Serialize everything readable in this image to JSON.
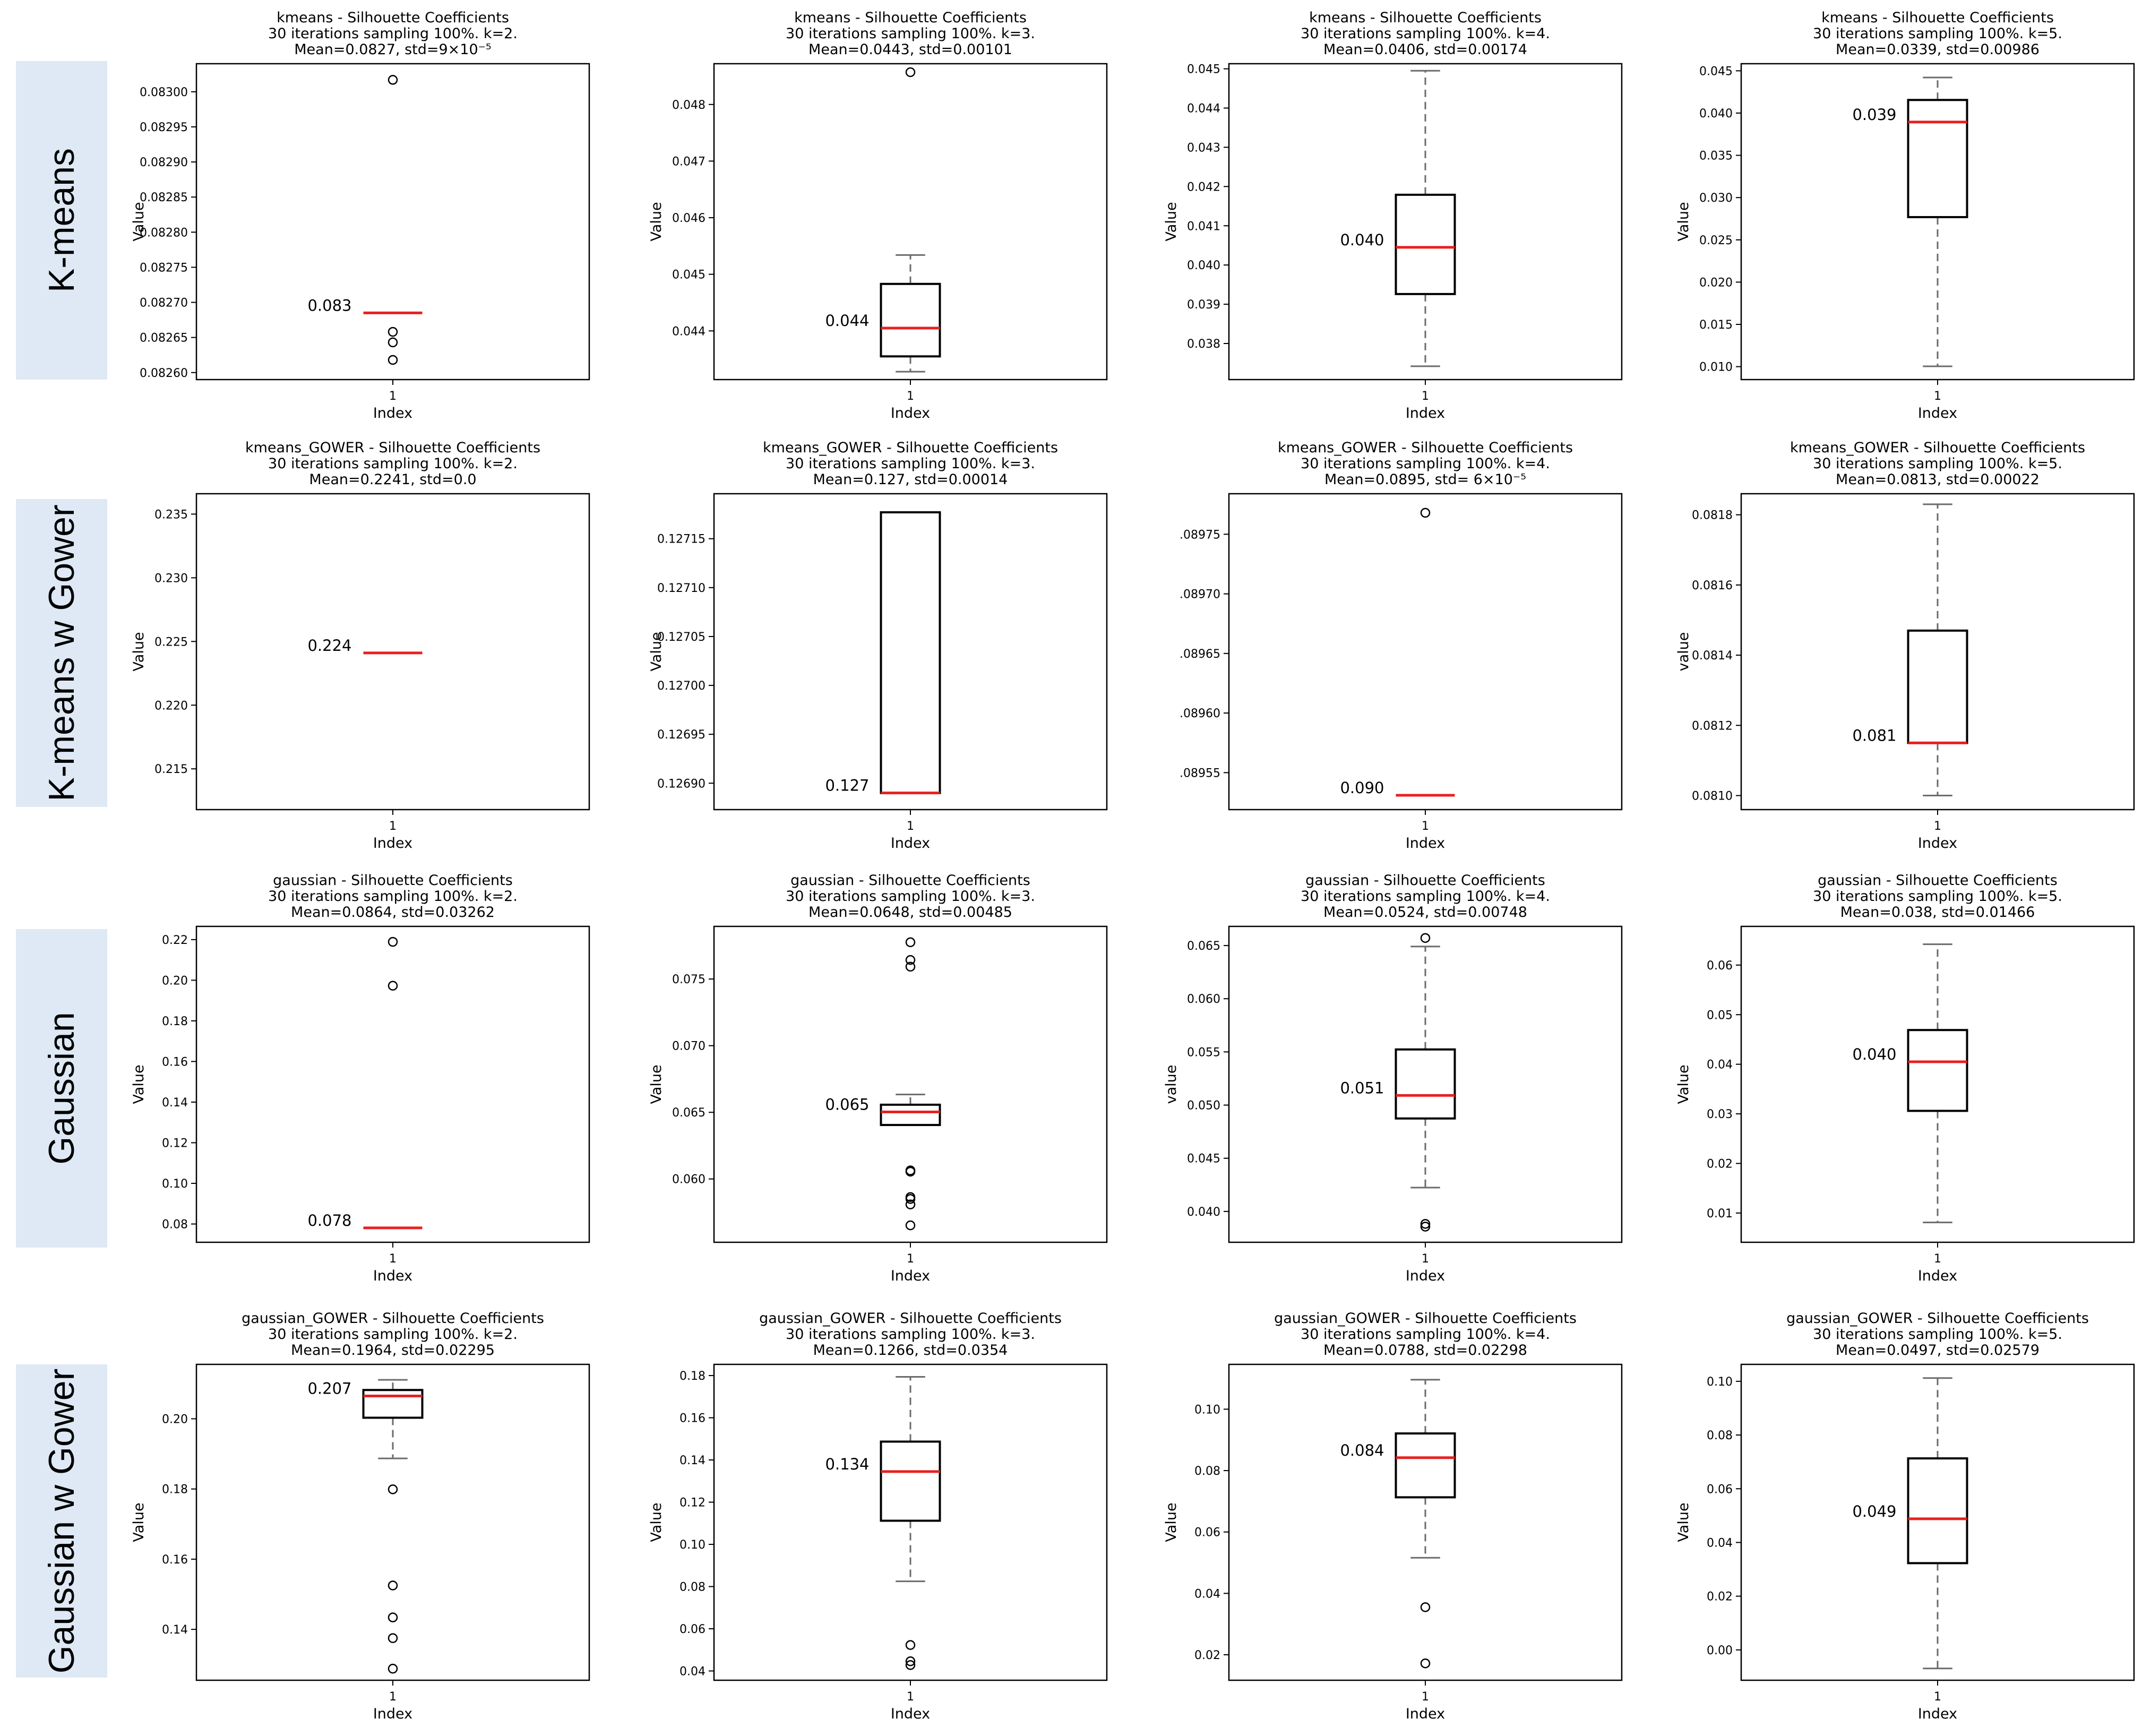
{
  "row_labels": [
    "K-means",
    "K-means w Gower",
    "Gaussian",
    "Gaussian w Gower"
  ],
  "chart_data": [
    {
      "type": "box",
      "title": [
        "kmeans - Silhouette Coefficients",
        "30 iterations sampling 100%. k=2.",
        "Mean=0.0827, std=9×10⁻⁵"
      ],
      "xlabel": "Index",
      "ylabel": "Value",
      "categories": [
        "1"
      ],
      "ylim": [
        0.08259,
        0.08304
      ],
      "yticks": [
        0.0826,
        0.08265,
        0.0827,
        0.08275,
        0.0828,
        0.08285,
        0.0829,
        0.08295,
        0.083
      ],
      "ytick_labels": [
        "0.08260",
        "0.08265",
        "0.08270",
        "0.08275",
        "0.08280",
        "0.08285",
        "0.08290",
        "0.08295",
        "0.08300"
      ],
      "box": {
        "q1": 0.082685,
        "median": 0.082685,
        "q3": 0.082685,
        "whislo": 0.082685,
        "whishi": 0.082685
      },
      "fliers": [
        0.083017,
        0.082658,
        0.082643,
        0.082618
      ],
      "median_label": "0.083",
      "colors": {
        "box": "#000000",
        "median": "#e8201f",
        "whisker": "#6b6b6b"
      }
    },
    {
      "type": "box",
      "title": [
        "kmeans - Silhouette Coefficients",
        "30 iterations sampling 100%. k=3.",
        "Mean=0.0443, std=0.00101"
      ],
      "xlabel": "Index",
      "ylabel": "Value",
      "categories": [
        "1"
      ],
      "ylim": [
        0.04314,
        0.04872
      ],
      "yticks": [
        0.044,
        0.045,
        0.046,
        0.047,
        0.048
      ],
      "ytick_labels": [
        "0.044",
        "0.045",
        "0.046",
        "0.047",
        "0.048"
      ],
      "box": {
        "q1": 0.04355,
        "median": 0.04405,
        "q3": 0.04483,
        "whislo": 0.04328,
        "whishi": 0.04534
      },
      "fliers": [
        0.04857
      ],
      "median_label": "0.044",
      "colors": {
        "box": "#000000",
        "median": "#e8201f",
        "whisker": "#6b6b6b"
      }
    },
    {
      "type": "box",
      "title": [
        "kmeans - Silhouette Coefficients",
        "30 iterations sampling 100%. k=4.",
        "Mean=0.0406, std=0.00174"
      ],
      "xlabel": "Index",
      "ylabel": "Value",
      "categories": [
        "1"
      ],
      "ylim": [
        0.03708,
        0.04513
      ],
      "yticks": [
        0.038,
        0.039,
        0.04,
        0.041,
        0.042,
        0.043,
        0.044,
        0.045
      ],
      "ytick_labels": [
        "0.038",
        "0.039",
        "0.040",
        "0.041",
        "0.042",
        "0.043",
        "0.044",
        "0.045"
      ],
      "box": {
        "q1": 0.03926,
        "median": 0.04045,
        "q3": 0.04179,
        "whislo": 0.03742,
        "whishi": 0.04495
      },
      "fliers": [],
      "median_label": "0.040",
      "colors": {
        "box": "#000000",
        "median": "#e8201f",
        "whisker": "#6b6b6b"
      }
    },
    {
      "type": "box",
      "title": [
        "kmeans - Silhouette Coefficients",
        "30 iterations sampling 100%. k=5.",
        "Mean=0.0339, std=0.00986"
      ],
      "xlabel": "Index",
      "ylabel": "Value",
      "categories": [
        "1"
      ],
      "ylim": [
        0.00847,
        0.04584
      ],
      "yticks": [
        0.01,
        0.015,
        0.02,
        0.025,
        0.03,
        0.035,
        0.04,
        0.045
      ],
      "ytick_labels": [
        "0.010",
        "0.015",
        "0.020",
        "0.025",
        "0.030",
        "0.035",
        "0.040",
        "0.045"
      ],
      "box": {
        "q1": 0.02769,
        "median": 0.03894,
        "q3": 0.04155,
        "whislo": 0.01004,
        "whishi": 0.04421
      },
      "fliers": [],
      "median_label": "0.039",
      "colors": {
        "box": "#000000",
        "median": "#e8201f",
        "whisker": "#6b6b6b"
      }
    },
    {
      "type": "box",
      "title": [
        "kmeans_GOWER - Silhouette Coefficients",
        "30 iterations sampling 100%. k=2.",
        "Mean=0.2241, std=0.0"
      ],
      "xlabel": "Index",
      "ylabel": "Value",
      "categories": [
        "1"
      ],
      "ylim": [
        0.2118,
        0.2366
      ],
      "yticks": [
        0.215,
        0.22,
        0.225,
        0.23,
        0.235
      ],
      "ytick_labels": [
        "0.215",
        "0.220",
        "0.225",
        "0.230",
        "0.235"
      ],
      "box": {
        "q1": 0.2241,
        "median": 0.2241,
        "q3": 0.2241,
        "whislo": 0.2241,
        "whishi": 0.2241
      },
      "fliers": [],
      "median_label": "0.224",
      "colors": {
        "box": "#000000",
        "median": "#e8201f",
        "whisker": "#6b6b6b"
      }
    },
    {
      "type": "box",
      "title": [
        "kmeans_GOWER - Silhouette Coefficients",
        "30 iterations sampling 100%. k=3.",
        "Mean=0.127, std=0.00014"
      ],
      "xlabel": "Index",
      "ylabel": "Value",
      "categories": [
        "1"
      ],
      "ylim": [
        0.126873,
        0.127196
      ],
      "yticks": [
        0.1269,
        0.12695,
        0.127,
        0.12705,
        0.1271,
        0.12715
      ],
      "ytick_labels": [
        "0.12690",
        "0.12695",
        "0.12700",
        "0.12705",
        "0.12710",
        "0.12715"
      ],
      "box": {
        "q1": 0.12689,
        "median": 0.12689,
        "q3": 0.127177,
        "whislo": 0.12689,
        "whishi": 0.127177
      },
      "fliers": [],
      "median_label": "0.127",
      "colors": {
        "box": "#000000",
        "median": "#e8201f",
        "whisker": "#6b6b6b"
      }
    },
    {
      "type": "box",
      "title": [
        "kmeans_GOWER - Silhouette Coefficients",
        "30 iterations sampling 100%. k=4.",
        "Mean=0.0895, std= 6×10⁻⁵"
      ],
      "xlabel": "Index",
      "ylabel": "",
      "categories": [
        "1"
      ],
      "ylim": [
        0.089519,
        0.089784
      ],
      "yticks": [
        0.08955,
        0.0896,
        0.08965,
        0.0897,
        0.08975
      ],
      "ytick_labels": [
        ".08955",
        ".08960",
        ".08965",
        ".08970",
        ".08975"
      ],
      "box": {
        "q1": 0.089531,
        "median": 0.089531,
        "q3": 0.089531,
        "whislo": 0.089531,
        "whishi": 0.089531
      },
      "fliers": [
        0.089768
      ],
      "median_label": "0.090",
      "colors": {
        "box": "#000000",
        "median": "#e8201f",
        "whisker": "#6b6b6b"
      }
    },
    {
      "type": "box",
      "title": [
        "kmeans_GOWER - Silhouette Coefficients",
        "30 iterations sampling 100%. k=5.",
        "Mean=0.0813, std=0.00022"
      ],
      "xlabel": "Index",
      "ylabel": "value",
      "categories": [
        "1"
      ],
      "ylim": [
        0.08096,
        0.08186
      ],
      "yticks": [
        0.081,
        0.0812,
        0.0814,
        0.0816,
        0.0818
      ],
      "ytick_labels": [
        "0.0810",
        "0.0812",
        "0.0814",
        "0.0816",
        "0.0818"
      ],
      "box": {
        "q1": 0.08115,
        "median": 0.08115,
        "q3": 0.08147,
        "whislo": 0.081,
        "whishi": 0.08183
      },
      "fliers": [],
      "median_label": "0.081",
      "colors": {
        "box": "#000000",
        "median": "#e8201f",
        "whisker": "#6b6b6b"
      }
    },
    {
      "type": "box",
      "title": [
        "gaussian - Silhouette Coefficients",
        "30 iterations sampling 100%. k=2.",
        "Mean=0.0864, std=0.03262"
      ],
      "xlabel": "Index",
      "ylabel": "Value",
      "categories": [
        "1"
      ],
      "ylim": [
        0.071,
        0.2265
      ],
      "yticks": [
        0.08,
        0.1,
        0.12,
        0.14,
        0.16,
        0.18,
        0.2,
        0.22
      ],
      "ytick_labels": [
        "0.08",
        "0.10",
        "0.12",
        "0.14",
        "0.16",
        "0.18",
        "0.20",
        "0.22"
      ],
      "box": {
        "q1": 0.0781,
        "median": 0.0781,
        "q3": 0.0781,
        "whislo": 0.0781,
        "whishi": 0.0781
      },
      "fliers": [
        0.2189,
        0.1973
      ],
      "median_label": "0.078",
      "colors": {
        "box": "#000000",
        "median": "#e8201f",
        "whisker": "#6b6b6b"
      }
    },
    {
      "type": "box",
      "title": [
        "gaussian - Silhouette Coefficients",
        "30 iterations sampling 100%. k=3.",
        "Mean=0.0648, std=0.00485"
      ],
      "xlabel": "Index",
      "ylabel": "Value",
      "categories": [
        "1"
      ],
      "ylim": [
        0.05525,
        0.07895
      ],
      "yticks": [
        0.06,
        0.065,
        0.07,
        0.075
      ],
      "ytick_labels": [
        "0.060",
        "0.065",
        "0.070",
        "0.075"
      ],
      "box": {
        "q1": 0.06405,
        "median": 0.06503,
        "q3": 0.06557,
        "whislo": 0.06405,
        "whishi": 0.06634
      },
      "fliers": [
        0.07776,
        0.07643,
        0.07593,
        0.06064,
        0.06055,
        0.05864,
        0.0585,
        0.05809,
        0.05652
      ],
      "median_label": "0.065",
      "colors": {
        "box": "#000000",
        "median": "#e8201f",
        "whisker": "#6b6b6b"
      }
    },
    {
      "type": "box",
      "title": [
        "gaussian - Silhouette Coefficients",
        "30 iterations sampling 100%. k=4.",
        "Mean=0.0524, std=0.00748"
      ],
      "xlabel": "Index",
      "ylabel": "value",
      "categories": [
        "1"
      ],
      "ylim": [
        0.0371,
        0.0668
      ],
      "yticks": [
        0.04,
        0.045,
        0.05,
        0.055,
        0.06,
        0.065
      ],
      "ytick_labels": [
        "0.040",
        "0.045",
        "0.050",
        "0.055",
        "0.060",
        "0.065"
      ],
      "box": {
        "q1": 0.04874,
        "median": 0.05091,
        "q3": 0.05523,
        "whislo": 0.04224,
        "whishi": 0.06491
      },
      "fliers": [
        0.06571,
        0.03883,
        0.03857
      ],
      "median_label": "0.051",
      "colors": {
        "box": "#000000",
        "median": "#e8201f",
        "whisker": "#6b6b6b"
      }
    },
    {
      "type": "box",
      "title": [
        "gaussian - Silhouette Coefficients",
        "30 iterations sampling 100%. k=5.",
        "Mean=0.038, std=0.01466"
      ],
      "xlabel": "Index",
      "ylabel": "Value",
      "categories": [
        "1"
      ],
      "ylim": [
        0.0041,
        0.0678
      ],
      "yticks": [
        0.01,
        0.02,
        0.03,
        0.04,
        0.05,
        0.06
      ],
      "ytick_labels": [
        "0.01",
        "0.02",
        "0.03",
        "0.04",
        "0.05",
        "0.06"
      ],
      "box": {
        "q1": 0.0306,
        "median": 0.0405,
        "q3": 0.0469,
        "whislo": 0.0081,
        "whishi": 0.0642
      },
      "fliers": [],
      "median_label": "0.040",
      "colors": {
        "box": "#000000",
        "median": "#e8201f",
        "whisker": "#6b6b6b"
      }
    },
    {
      "type": "box",
      "title": [
        "gaussian_GOWER - Silhouette Coefficients",
        "30 iterations sampling 100%. k=2.",
        "Mean=0.1964, std=0.02295"
      ],
      "xlabel": "Index",
      "ylabel": "Value",
      "categories": [
        "1"
      ],
      "ylim": [
        0.1255,
        0.2155
      ],
      "yticks": [
        0.14,
        0.16,
        0.18,
        0.2
      ],
      "ytick_labels": [
        "0.14",
        "0.16",
        "0.18",
        "0.20"
      ],
      "box": {
        "q1": 0.2003,
        "median": 0.2065,
        "q3": 0.2082,
        "whislo": 0.1887,
        "whishi": 0.2111
      },
      "fliers": [
        0.1799,
        0.1525,
        0.1434,
        0.1375,
        0.1288
      ],
      "median_label": "0.207",
      "colors": {
        "box": "#000000",
        "median": "#e8201f",
        "whisker": "#6b6b6b"
      }
    },
    {
      "type": "box",
      "title": [
        "gaussian_GOWER - Silhouette Coefficients",
        "30 iterations sampling 100%. k=3.",
        "Mean=0.1266, std=0.0354"
      ],
      "xlabel": "Index",
      "ylabel": "Value",
      "categories": [
        "1"
      ],
      "ylim": [
        0.0356,
        0.1853
      ],
      "yticks": [
        0.04,
        0.06,
        0.08,
        0.1,
        0.12,
        0.14,
        0.16,
        0.18
      ],
      "ytick_labels": [
        "0.04",
        "0.06",
        "0.08",
        "0.10",
        "0.12",
        "0.14",
        "0.16",
        "0.18"
      ],
      "box": {
        "q1": 0.1112,
        "median": 0.1345,
        "q3": 0.1487,
        "whislo": 0.0825,
        "whishi": 0.1794
      },
      "fliers": [
        0.0523,
        0.0446,
        0.0428
      ],
      "median_label": "0.134",
      "colors": {
        "box": "#000000",
        "median": "#e8201f",
        "whisker": "#6b6b6b"
      }
    },
    {
      "type": "box",
      "title": [
        "gaussian_GOWER - Silhouette Coefficients",
        "30 iterations sampling 100%. k=4.",
        "Mean=0.0788, std=0.02298"
      ],
      "xlabel": "Index",
      "ylabel": "Value",
      "categories": [
        "1"
      ],
      "ylim": [
        0.0117,
        0.1146
      ],
      "yticks": [
        0.02,
        0.04,
        0.06,
        0.08,
        0.1
      ],
      "ytick_labels": [
        "0.02",
        "0.04",
        "0.06",
        "0.08",
        "0.10"
      ],
      "box": {
        "q1": 0.0713,
        "median": 0.0842,
        "q3": 0.0921,
        "whislo": 0.0516,
        "whishi": 0.1096
      },
      "fliers": [
        0.0355,
        0.0172
      ],
      "median_label": "0.084",
      "colors": {
        "box": "#000000",
        "median": "#e8201f",
        "whisker": "#6b6b6b"
      }
    },
    {
      "type": "box",
      "title": [
        "gaussian_GOWER - Silhouette Coefficients",
        "30 iterations sampling 100%. k=5.",
        "Mean=0.0497, std=0.02579"
      ],
      "xlabel": "Index",
      "ylabel": "Value",
      "categories": [
        "1"
      ],
      "ylim": [
        -0.0113,
        0.1063
      ],
      "yticks": [
        0.0,
        0.02,
        0.04,
        0.06,
        0.08,
        0.1
      ],
      "ytick_labels": [
        "0.00",
        "0.02",
        "0.04",
        "0.06",
        "0.08",
        "0.10"
      ],
      "box": {
        "q1": 0.0323,
        "median": 0.0488,
        "q3": 0.0713,
        "whislo": -0.0069,
        "whishi": 0.1012
      },
      "fliers": [],
      "median_label": "0.049",
      "colors": {
        "box": "#000000",
        "median": "#e8201f",
        "whisker": "#6b6b6b"
      }
    }
  ]
}
